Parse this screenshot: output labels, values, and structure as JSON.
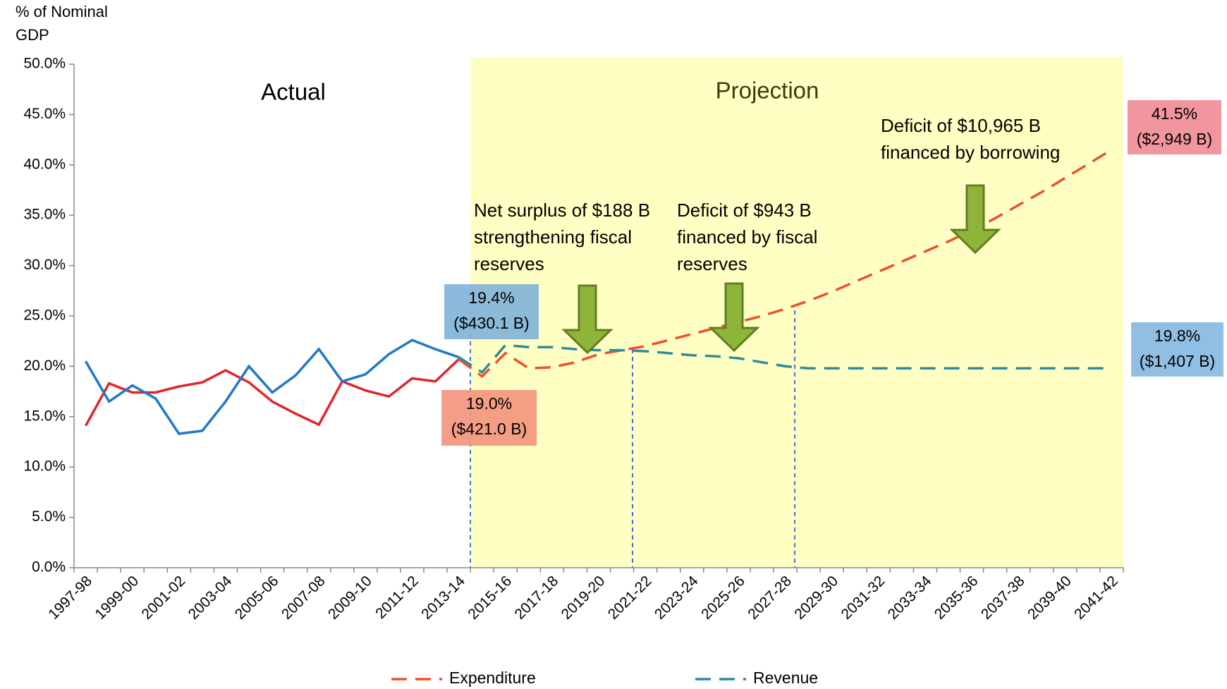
{
  "chart_data": {
    "type": "line",
    "y_axis_label": [
      "% of Nominal",
      "GDP"
    ],
    "categories": [
      "1997-98",
      null,
      "1999-00",
      null,
      "2001-02",
      null,
      "2003-04",
      null,
      "2005-06",
      null,
      "2007-08",
      null,
      "2009-10",
      null,
      "2011-12",
      null,
      "2013-14",
      null,
      "2015-16",
      null,
      "2017-18",
      null,
      "2019-20",
      null,
      "2021-22",
      null,
      "2023-24",
      null,
      "2025-26",
      null,
      "2027-28",
      null,
      "2029-30",
      null,
      "2031-32",
      null,
      "2033-34",
      null,
      "2035-36",
      null,
      "2037-38",
      null,
      "2039-40",
      null,
      "2041-42"
    ],
    "projection_start": 16,
    "regions": [
      {
        "label": "Actual"
      },
      {
        "label": "Projection",
        "color": "#ffffc4"
      }
    ],
    "series": [
      {
        "name": "Expenditure",
        "color": "#e3242b",
        "projection_color": "#f0502a",
        "values": [
          14.1,
          18.3,
          17.4,
          17.4,
          18.0,
          18.4,
          19.6,
          18.4,
          16.5,
          15.3,
          14.2,
          18.5,
          17.6,
          17.0,
          18.8,
          18.5,
          20.7,
          19.0,
          21.3,
          19.8,
          19.9,
          20.4,
          21.2,
          21.6,
          22.0,
          22.6,
          23.2,
          23.8,
          24.4,
          25.0,
          25.7,
          26.5,
          27.4,
          28.4,
          29.4,
          30.4,
          31.4,
          32.4,
          33.5,
          34.7,
          36.0,
          37.3,
          38.7,
          40.1,
          41.5
        ]
      },
      {
        "name": "Revenue",
        "color": "#1f78c8",
        "projection_color": "#2e8b9a",
        "values": [
          20.5,
          16.5,
          18.1,
          16.8,
          13.3,
          13.6,
          16.5,
          20.0,
          17.4,
          19.1,
          21.7,
          18.5,
          19.2,
          21.2,
          22.6,
          21.7,
          20.9,
          19.4,
          22.1,
          21.9,
          21.9,
          21.7,
          21.6,
          21.6,
          21.5,
          21.3,
          21.1,
          21.0,
          20.8,
          20.4,
          20.0,
          19.8,
          19.8,
          19.8,
          19.8,
          19.8,
          19.8,
          19.8,
          19.8,
          19.8,
          19.8,
          19.8,
          19.8,
          19.8,
          19.8
        ]
      }
    ],
    "ylim": [
      0,
      50
    ],
    "yticks": [
      {
        "value": 0,
        "label": "0.0%"
      },
      {
        "value": 5,
        "label": "5.0%"
      },
      {
        "value": 10,
        "label": "10.0%"
      },
      {
        "value": 15,
        "label": "15.0%"
      },
      {
        "value": 20,
        "label": "20.0%"
      },
      {
        "value": 25,
        "label": "25.0%"
      },
      {
        "value": 30,
        "label": "30.0%"
      },
      {
        "value": 35,
        "label": "35.0%"
      },
      {
        "value": 40,
        "label": "40.0%"
      },
      {
        "value": 45,
        "label": "45.0%"
      },
      {
        "value": 50,
        "label": "50.0%"
      }
    ],
    "value_boxes": [
      {
        "lines": [
          "19.4%",
          "($430.1 B)"
        ],
        "color": "#7fb2d9"
      },
      {
        "lines": [
          "19.0%",
          "($421.0 B)"
        ],
        "color": "#f3937c"
      },
      {
        "lines": [
          "41.5%",
          "($2,949 B)"
        ],
        "color": "#f08a93"
      },
      {
        "lines": [
          "19.8%",
          "($1,407 B)"
        ],
        "color": "#85b8e0"
      }
    ],
    "annotations": [
      {
        "lines": [
          "Net surplus of $188 B",
          "strengthening fiscal",
          "reserves"
        ]
      },
      {
        "lines": [
          "Deficit of $943 B",
          "financed by fiscal",
          "reserves"
        ]
      },
      {
        "lines": [
          "Deficit of $10,965 B",
          "financed by borrowing"
        ]
      }
    ],
    "legend": "bottom"
  }
}
